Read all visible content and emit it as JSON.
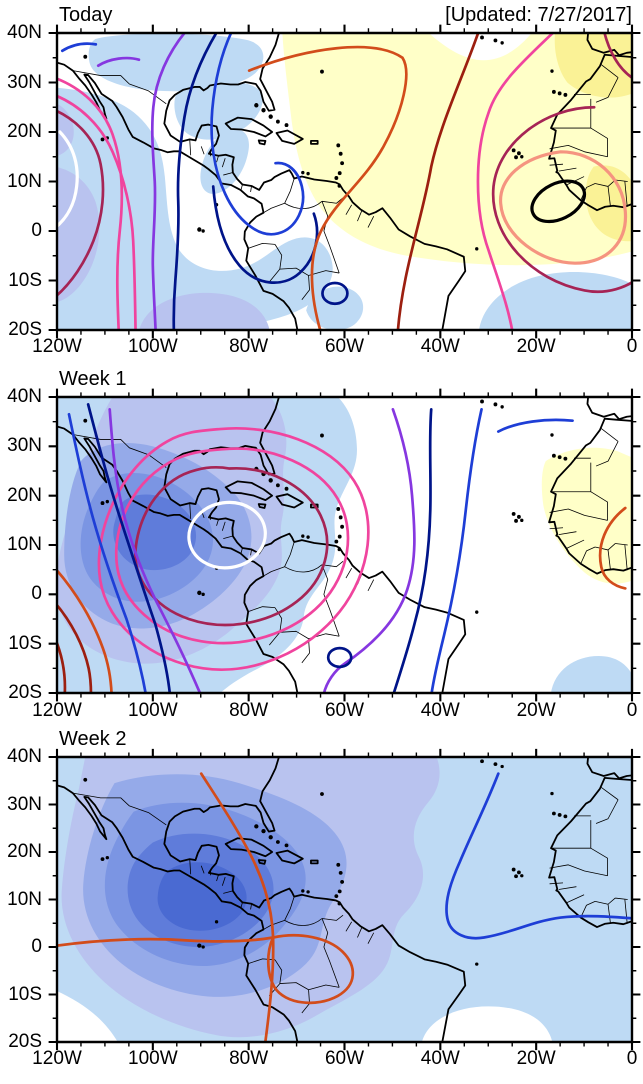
{
  "updated": "[Updated: 7/27/2017]",
  "panels": [
    {
      "title": "Today"
    },
    {
      "title": "Week 1"
    },
    {
      "title": "Week 2"
    }
  ],
  "axes": {
    "x_labels": [
      "120W",
      "100W",
      "80W",
      "60W",
      "40W",
      "20W",
      "0"
    ],
    "y_labels": [
      "40N",
      "30N",
      "20N",
      "10N",
      "0",
      "10S",
      "20S"
    ]
  },
  "colors": {
    "coast": "#000000",
    "blue1": "#bedaf4",
    "blue2": "#b9c3ef",
    "blue3": "#95aae9",
    "blue4": "#7b95e3",
    "blue5": "#5f7cda",
    "blue6": "#4a6ad2",
    "yellow1": "#ffffc8",
    "yellow2": "#faf296",
    "lineWhite": "#ffffff",
    "lineBlack": "#000000",
    "linePurple": "#8637e0",
    "lineBlue": "#1e3ed6",
    "lineNavy": "#001489",
    "linePink": "#f0449e",
    "lineMaroon": "#a62455",
    "lineBrick": "#9c1f10",
    "lineOrange": "#d24c1b",
    "lineSalmon": "#f59480"
  },
  "chart_data": {
    "type": "heatmap",
    "subtype": "filled-contour anomaly maps over a lat/lon basemap, 3 stacked panels",
    "updated_label": "[Updated: 7/27/2017]",
    "x_axis": {
      "tick_labels": [
        "120W",
        "100W",
        "80W",
        "60W",
        "40W",
        "20W",
        "0"
      ],
      "range_deg_lon": [
        -120,
        0
      ],
      "minor_tick_every_deg": 5
    },
    "y_axis": {
      "tick_labels": [
        "40N",
        "30N",
        "20N",
        "10N",
        "0",
        "10S",
        "20S"
      ],
      "range_deg_lat": [
        -20,
        40
      ],
      "minor_tick_every_deg": 5
    },
    "panels": [
      {
        "title": "Today",
        "negative_shading": "light blue over SW US/N Mexico blob, Gulf of Mexico, eastern Pacific and west coast of South America down to 20S; periwinkle patches near 110W 0-15S and along 20S; light blue patches near 60W 18S and SE corner 20W-0 15-20S",
        "positive_shading": "pale yellow across tropical Atlantic from ~75W to Africa (35N-18S), deeper yellow over NW Africa and Gulf of Guinea",
        "negative_center": {
          "approx_lon": "118W",
          "approx_lat": "8N",
          "innermost_contour": "white"
        },
        "positive_center": {
          "approx_lon": "15W",
          "approx_lat": "6N",
          "innermost_contour": "black closed oval"
        },
        "contour_colors_west_to_east": [
          "white",
          "maroon",
          "pink",
          "pink",
          "purple",
          "navy",
          "blue",
          "orange",
          "dark-red",
          "pink",
          "maroon",
          "salmon",
          "black"
        ]
      },
      {
        "title": "Week 1",
        "negative_shading": "strong concentric blues (4-5 levels) centered near Central America/Nicaragua (~85W 10N) covering Mexico, Gulf, Caribbean and east Pacific; light blue patch at SE corner",
        "positive_shading": "pale yellow over West Africa with orange contour arc; orange/dark-red contours entering SW corner",
        "negative_center": {
          "approx_lon": "85W",
          "approx_lat": "11N",
          "innermost_contour": "white closed ring"
        },
        "closed_rings_out_from_center": [
          "white",
          "maroon",
          "pink",
          "pink"
        ],
        "open_contours_east_side_west_to_east": [
          "purple",
          "navy",
          "blue",
          "blue arc near 25W 35N"
        ],
        "open_contours_west_side": [
          "blue",
          "navy",
          "purple",
          "orange",
          "dark-red",
          "dark-red"
        ]
      },
      {
        "title": "Week 2",
        "negative_shading": "entire domain shaded blue (5-6 levels) with darkest core near 90W 5N off Colombia/Ecuador; white gaps only at SW corner and near 30W 15-20S",
        "positive_shading": "none",
        "contours": [
          "orange line from 90W 35N down through Florida Strait/Caribbean to bottom, with westward branch along ~0 lat and a closed orange loop over Peru/Brazil ~75W 5S",
          "blue line from 25W 35N curving southwest then east along ~5N to the Gulf of Guinea coast"
        ]
      }
    ]
  }
}
